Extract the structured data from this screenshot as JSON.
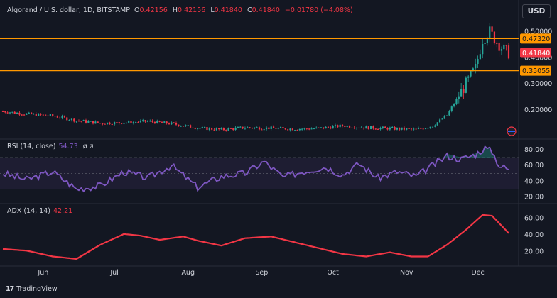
{
  "header": {
    "symbol": "Algorand / U.S. dollar, 1D, BITSTAMP",
    "o_label": "O",
    "o_value": "0.42156",
    "h_label": "H",
    "h_value": "0.42156",
    "l_label": "L",
    "l_value": "0.41840",
    "c_label": "C",
    "c_value": "0.41840",
    "change": "−0.01780 (−4.08%)"
  },
  "currency_button": "USD",
  "branding": "TradingView",
  "colors": {
    "background": "#131722",
    "up": "#26a69a",
    "down": "#f23645",
    "level": "#ff9800",
    "rsi_line": "#7e57c2",
    "adx_line": "#f23645",
    "text": "#d1d4dc"
  },
  "chart_data": [
    {
      "type": "candlestick",
      "title": "Algorand / U.S. dollar, 1D, BITSTAMP",
      "y_axis_ticks": [
        "0.50000",
        "0.40000",
        "0.30000",
        "0.20000"
      ],
      "ylim": [
        0.1,
        0.55
      ],
      "x_ticks": [
        "Jun",
        "Jul",
        "Aug",
        "Sep",
        "Oct",
        "Nov",
        "Dec"
      ],
      "horizontal_levels": [
        {
          "label": "0.47320",
          "value": 0.4732
        },
        {
          "label": "0.35055",
          "value": 0.35055
        }
      ],
      "last_price": {
        "label": "0.41840",
        "value": 0.4184
      },
      "anchors": [
        [
          "May 15",
          0.195
        ],
        [
          "May 25",
          0.185
        ],
        [
          "Jun 5",
          0.178
        ],
        [
          "Jun 15",
          0.16
        ],
        [
          "Jun 25",
          0.15
        ],
        [
          "Jul 5",
          0.152
        ],
        [
          "Jul 15",
          0.157
        ],
        [
          "Jul 25",
          0.148
        ],
        [
          "Aug 5",
          0.132
        ],
        [
          "Aug 15",
          0.125
        ],
        [
          "Aug 25",
          0.133
        ],
        [
          "Sep 5",
          0.131
        ],
        [
          "Sep 15",
          0.128
        ],
        [
          "Sep 25",
          0.13
        ],
        [
          "Oct 5",
          0.14
        ],
        [
          "Oct 15",
          0.133
        ],
        [
          "Oct 25",
          0.13
        ],
        [
          "Nov 5",
          0.125
        ],
        [
          "Nov 12",
          0.14
        ],
        [
          "Nov 18",
          0.18
        ],
        [
          "Nov 24",
          0.27
        ],
        [
          "Nov 30",
          0.36
        ],
        [
          "Dec 3",
          0.47
        ],
        [
          "Dec 6",
          0.5
        ],
        [
          "Dec 9",
          0.46
        ],
        [
          "Dec 12",
          0.43
        ],
        [
          "Dec 14",
          0.418
        ]
      ]
    },
    {
      "type": "line",
      "title": "RSI (14, close)",
      "value_label": "54.73",
      "extra": "ø  ø",
      "y_axis_ticks": [
        "80.00",
        "60.00",
        "40.00",
        "20.00"
      ],
      "ylim": [
        15,
        90
      ],
      "bands": [
        30,
        70
      ],
      "anchors": [
        [
          "May 15",
          50
        ],
        [
          "May 25",
          42
        ],
        [
          "Jun 5",
          52
        ],
        [
          "Jun 15",
          30
        ],
        [
          "Jun 25",
          34
        ],
        [
          "Jul 5",
          52
        ],
        [
          "Jul 15",
          44
        ],
        [
          "Jul 25",
          60
        ],
        [
          "Aug 5",
          32
        ],
        [
          "Aug 15",
          46
        ],
        [
          "Aug 25",
          50
        ],
        [
          "Sep 2",
          65
        ],
        [
          "Sep 10",
          45
        ],
        [
          "Sep 18",
          52
        ],
        [
          "Sep 28",
          58
        ],
        [
          "Oct 5",
          48
        ],
        [
          "Oct 12",
          62
        ],
        [
          "Oct 20",
          44
        ],
        [
          "Oct 28",
          52
        ],
        [
          "Nov 5",
          46
        ],
        [
          "Nov 12",
          60
        ],
        [
          "Nov 18",
          72
        ],
        [
          "Nov 24",
          68
        ],
        [
          "Nov 30",
          74
        ],
        [
          "Dec 4",
          82
        ],
        [
          "Dec 7",
          78
        ],
        [
          "Dec 10",
          60
        ],
        [
          "Dec 14",
          55
        ]
      ]
    },
    {
      "type": "line",
      "title": "ADX (14, 14)",
      "value_label": "42.21",
      "y_axis_ticks": [
        "60.00",
        "40.00",
        "20.00"
      ],
      "ylim": [
        5,
        75
      ],
      "anchors": [
        [
          "May 15",
          23
        ],
        [
          "May 25",
          21
        ],
        [
          "Jun 5",
          14
        ],
        [
          "Jun 15",
          11
        ],
        [
          "Jun 25",
          28
        ],
        [
          "Jul 5",
          41
        ],
        [
          "Jul 12",
          39
        ],
        [
          "Jul 20",
          34
        ],
        [
          "Jul 30",
          38
        ],
        [
          "Aug 5",
          33
        ],
        [
          "Aug 15",
          27
        ],
        [
          "Aug 25",
          36
        ],
        [
          "Sep 5",
          38
        ],
        [
          "Sep 15",
          31
        ],
        [
          "Sep 25",
          24
        ],
        [
          "Oct 5",
          17
        ],
        [
          "Oct 15",
          14
        ],
        [
          "Oct 25",
          19
        ],
        [
          "Nov 3",
          14
        ],
        [
          "Nov 10",
          14
        ],
        [
          "Nov 18",
          28
        ],
        [
          "Nov 26",
          46
        ],
        [
          "Dec 3",
          64
        ],
        [
          "Dec 7",
          63
        ],
        [
          "Dec 14",
          42
        ]
      ]
    }
  ]
}
